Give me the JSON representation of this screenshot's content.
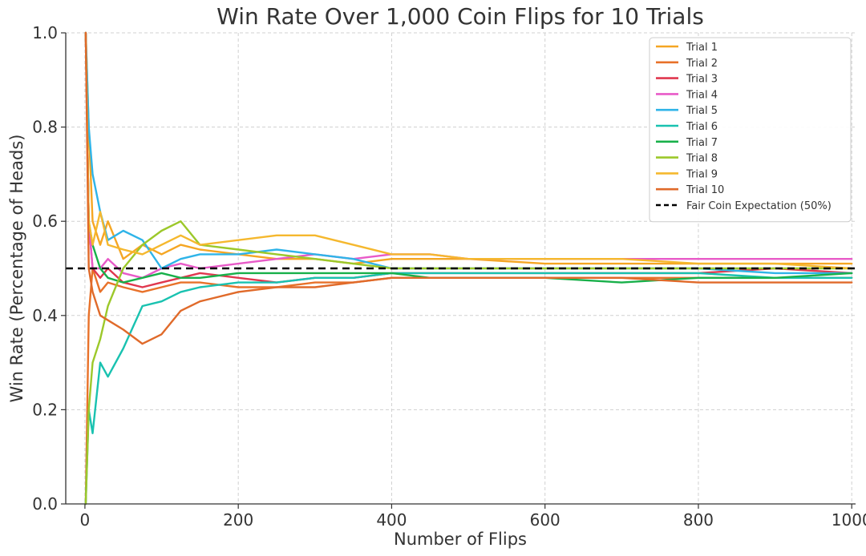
{
  "chart_data": {
    "type": "line",
    "title": "Win Rate Over 1,000 Coin Flips for 10 Trials",
    "xlabel": "Number of Flips",
    "ylabel": "Win Rate (Percentage of Heads)",
    "xlim": [
      -25,
      1005
    ],
    "ylim": [
      0.0,
      1.0
    ],
    "xticks": [
      0,
      200,
      400,
      600,
      800,
      1000
    ],
    "xtick_labels": [
      "0",
      "200",
      "400",
      "600",
      "800",
      "1000"
    ],
    "yticks": [
      0.0,
      0.2,
      0.4,
      0.6,
      0.8,
      1.0
    ],
    "ytick_labels": [
      "0.0",
      "0.2",
      "0.4",
      "0.6",
      "0.8",
      "1.0"
    ],
    "grid": true,
    "legend_position": "top-right",
    "reference_line": {
      "name": "Fair Coin Expectation (50%)",
      "y": 0.5,
      "style": "dashed",
      "color": "#000000"
    },
    "series": [
      {
        "name": "Trial 1",
        "color": "#f5a623",
        "x": [
          1,
          5,
          10,
          20,
          30,
          50,
          75,
          100,
          125,
          150,
          200,
          250,
          300,
          350,
          400,
          450,
          500,
          600,
          700,
          800,
          900,
          1000
        ],
        "y": [
          1.0,
          0.8,
          0.6,
          0.55,
          0.6,
          0.52,
          0.55,
          0.53,
          0.55,
          0.54,
          0.53,
          0.52,
          0.52,
          0.51,
          0.52,
          0.52,
          0.52,
          0.51,
          0.51,
          0.51,
          0.51,
          0.51
        ]
      },
      {
        "name": "Trial 2",
        "color": "#e8722a",
        "x": [
          1,
          5,
          10,
          20,
          30,
          50,
          75,
          100,
          125,
          150,
          200,
          250,
          300,
          350,
          400,
          450,
          500,
          600,
          700,
          800,
          900,
          1000
        ],
        "y": [
          0.0,
          0.4,
          0.5,
          0.45,
          0.47,
          0.46,
          0.45,
          0.46,
          0.47,
          0.47,
          0.46,
          0.46,
          0.47,
          0.47,
          0.48,
          0.48,
          0.48,
          0.48,
          0.48,
          0.48,
          0.48,
          0.48
        ]
      },
      {
        "name": "Trial 3",
        "color": "#e0374e",
        "x": [
          1,
          5,
          10,
          20,
          30,
          50,
          75,
          100,
          125,
          150,
          200,
          250,
          300,
          350,
          400,
          450,
          500,
          600,
          700,
          800,
          900,
          1000
        ],
        "y": [
          1.0,
          0.6,
          0.5,
          0.48,
          0.5,
          0.47,
          0.46,
          0.47,
          0.48,
          0.49,
          0.48,
          0.47,
          0.48,
          0.48,
          0.49,
          0.49,
          0.49,
          0.49,
          0.49,
          0.49,
          0.5,
          0.49
        ]
      },
      {
        "name": "Trial 4",
        "color": "#e85ac8",
        "x": [
          1,
          5,
          10,
          20,
          30,
          50,
          75,
          100,
          125,
          150,
          200,
          250,
          300,
          350,
          400,
          450,
          500,
          600,
          700,
          800,
          900,
          1000
        ],
        "y": [
          1.0,
          0.6,
          0.5,
          0.5,
          0.52,
          0.49,
          0.48,
          0.5,
          0.51,
          0.5,
          0.51,
          0.52,
          0.53,
          0.52,
          0.53,
          0.53,
          0.52,
          0.52,
          0.52,
          0.52,
          0.52,
          0.52
        ]
      },
      {
        "name": "Trial 5",
        "color": "#2fb4e8",
        "x": [
          1,
          5,
          10,
          20,
          30,
          50,
          75,
          100,
          125,
          150,
          200,
          250,
          300,
          350,
          400,
          450,
          500,
          600,
          700,
          800,
          900,
          1000
        ],
        "y": [
          1.0,
          0.8,
          0.7,
          0.62,
          0.56,
          0.58,
          0.56,
          0.5,
          0.52,
          0.53,
          0.53,
          0.54,
          0.53,
          0.52,
          0.5,
          0.5,
          0.5,
          0.5,
          0.5,
          0.5,
          0.49,
          0.49
        ]
      },
      {
        "name": "Trial 6",
        "color": "#19c2b0",
        "x": [
          1,
          5,
          10,
          20,
          30,
          50,
          75,
          100,
          125,
          150,
          200,
          250,
          300,
          350,
          400,
          450,
          500,
          600,
          700,
          800,
          900,
          1000
        ],
        "y": [
          0.0,
          0.2,
          0.15,
          0.3,
          0.27,
          0.33,
          0.42,
          0.43,
          0.45,
          0.46,
          0.47,
          0.47,
          0.48,
          0.48,
          0.49,
          0.49,
          0.49,
          0.49,
          0.49,
          0.49,
          0.48,
          0.48
        ]
      },
      {
        "name": "Trial 7",
        "color": "#18b04a",
        "x": [
          1,
          5,
          10,
          20,
          30,
          50,
          75,
          100,
          125,
          150,
          200,
          250,
          300,
          350,
          400,
          450,
          500,
          600,
          700,
          800,
          900,
          1000
        ],
        "y": [
          1.0,
          0.6,
          0.55,
          0.5,
          0.48,
          0.47,
          0.48,
          0.49,
          0.48,
          0.48,
          0.49,
          0.49,
          0.49,
          0.49,
          0.49,
          0.48,
          0.48,
          0.48,
          0.47,
          0.48,
          0.48,
          0.49
        ]
      },
      {
        "name": "Trial 8",
        "color": "#9cc82a",
        "x": [
          1,
          5,
          10,
          20,
          30,
          50,
          75,
          100,
          125,
          150,
          200,
          250,
          300,
          350,
          400,
          450,
          500,
          600,
          700,
          800,
          900,
          1000
        ],
        "y": [
          0.0,
          0.2,
          0.3,
          0.35,
          0.42,
          0.5,
          0.55,
          0.58,
          0.6,
          0.55,
          0.54,
          0.53,
          0.52,
          0.51,
          0.5,
          0.5,
          0.5,
          0.5,
          0.5,
          0.5,
          0.5,
          0.5
        ]
      },
      {
        "name": "Trial 9",
        "color": "#f5b82e",
        "x": [
          1,
          5,
          10,
          20,
          30,
          50,
          75,
          100,
          125,
          150,
          200,
          250,
          300,
          350,
          400,
          450,
          500,
          600,
          700,
          800,
          900,
          1000
        ],
        "y": [
          1.0,
          0.6,
          0.55,
          0.62,
          0.55,
          0.54,
          0.53,
          0.55,
          0.57,
          0.55,
          0.56,
          0.57,
          0.57,
          0.55,
          0.53,
          0.53,
          0.52,
          0.52,
          0.52,
          0.51,
          0.51,
          0.5
        ]
      },
      {
        "name": "Trial 10",
        "color": "#e06a2a",
        "x": [
          1,
          5,
          10,
          20,
          30,
          50,
          75,
          100,
          125,
          150,
          200,
          250,
          300,
          350,
          400,
          450,
          500,
          600,
          700,
          800,
          900,
          1000
        ],
        "y": [
          1.0,
          0.5,
          0.45,
          0.4,
          0.39,
          0.37,
          0.34,
          0.36,
          0.41,
          0.43,
          0.45,
          0.46,
          0.46,
          0.47,
          0.48,
          0.48,
          0.48,
          0.48,
          0.48,
          0.47,
          0.47,
          0.47
        ]
      }
    ]
  }
}
